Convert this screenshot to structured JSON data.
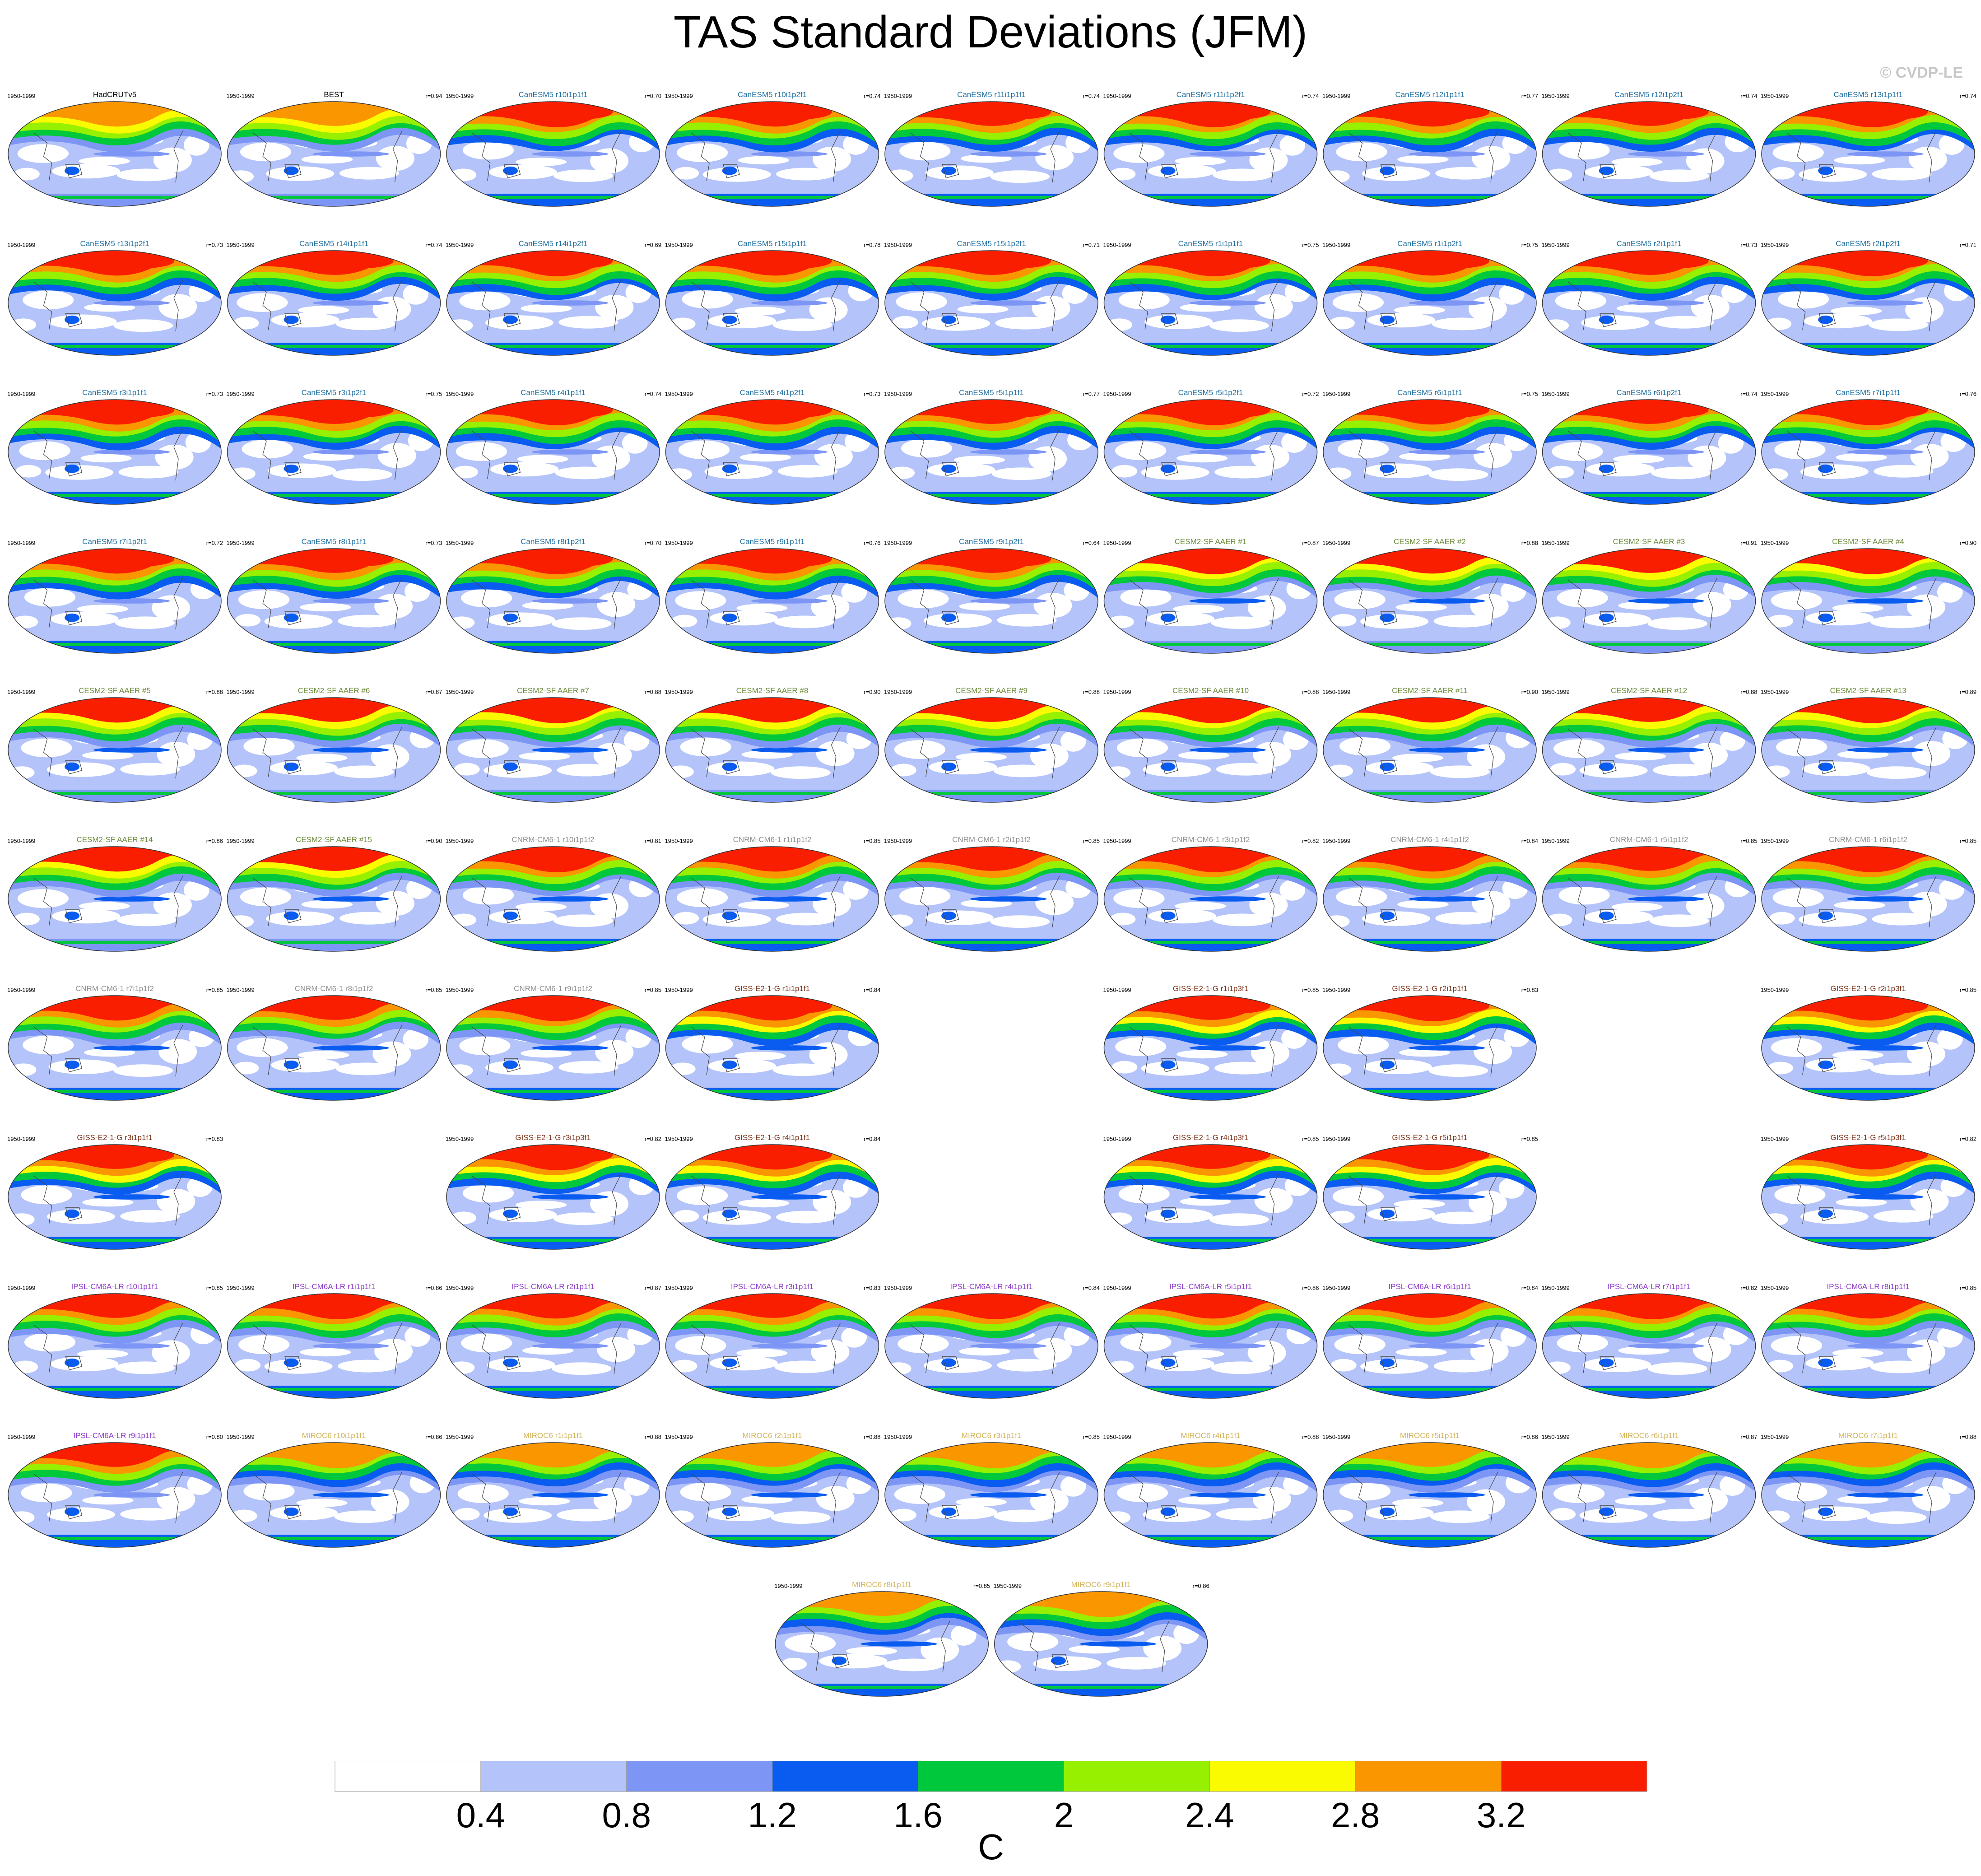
{
  "figure": {
    "title": "TAS Standard Deviations (JFM)",
    "watermark": "© CVDP-LE",
    "colorbar_unit": "C"
  },
  "chart_data": {
    "type": "heatmap",
    "description_kind": "grid of global map panels",
    "colorbar": {
      "levels": [
        0.4,
        0.8,
        1.2,
        1.6,
        2,
        2.4,
        2.8,
        3.2
      ],
      "tick_labels": [
        "0.4",
        "0.8",
        "1.2",
        "1.6",
        "2",
        "2.4",
        "2.8",
        "3.2"
      ],
      "colors": [
        "#ffffff",
        "#b4c4fa",
        "#7d96f5",
        "#0a5cf0",
        "#00c83c",
        "#96f000",
        "#fafa00",
        "#fa9600",
        "#fa1e00"
      ],
      "unit": "C"
    },
    "panels": [
      {
        "row": 0,
        "col": 0,
        "title": "HadCRUTv5",
        "period": "1950-1999",
        "r": "",
        "group": "obs",
        "style": "obs"
      },
      {
        "row": 0,
        "col": 1,
        "title": "BEST",
        "period": "1950-1999",
        "r": "r=0.94",
        "group": "obs",
        "style": "obs"
      },
      {
        "row": 0,
        "col": 2,
        "title": "CanESM5 r10i1p1f1",
        "period": "1950-1999",
        "r": "r=0.70",
        "group": "canesm",
        "style": "can"
      },
      {
        "row": 0,
        "col": 3,
        "title": "CanESM5 r10i1p2f1",
        "period": "1950-1999",
        "r": "r=0.74",
        "group": "canesm",
        "style": "can"
      },
      {
        "row": 0,
        "col": 4,
        "title": "CanESM5 r11i1p1f1",
        "period": "1950-1999",
        "r": "r=0.74",
        "group": "canesm",
        "style": "can"
      },
      {
        "row": 0,
        "col": 5,
        "title": "CanESM5 r11i1p2f1",
        "period": "1950-1999",
        "r": "r=0.74",
        "group": "canesm",
        "style": "can"
      },
      {
        "row": 0,
        "col": 6,
        "title": "CanESM5 r12i1p1f1",
        "period": "1950-1999",
        "r": "r=0.77",
        "group": "canesm",
        "style": "can"
      },
      {
        "row": 0,
        "col": 7,
        "title": "CanESM5 r12i1p2f1",
        "period": "1950-1999",
        "r": "r=0.74",
        "group": "canesm",
        "style": "can"
      },
      {
        "row": 0,
        "col": 8,
        "title": "CanESM5 r13i1p1f1",
        "period": "1950-1999",
        "r": "r=0.74",
        "group": "canesm",
        "style": "can"
      },
      {
        "row": 1,
        "col": 0,
        "title": "CanESM5 r13i1p2f1",
        "period": "1950-1999",
        "r": "r=0.73",
        "group": "canesm",
        "style": "can"
      },
      {
        "row": 1,
        "col": 1,
        "title": "CanESM5 r14i1p1f1",
        "period": "1950-1999",
        "r": "r=0.74",
        "group": "canesm",
        "style": "can"
      },
      {
        "row": 1,
        "col": 2,
        "title": "CanESM5 r14i1p2f1",
        "period": "1950-1999",
        "r": "r=0.69",
        "group": "canesm",
        "style": "can"
      },
      {
        "row": 1,
        "col": 3,
        "title": "CanESM5 r15i1p1f1",
        "period": "1950-1999",
        "r": "r=0.78",
        "group": "canesm",
        "style": "can"
      },
      {
        "row": 1,
        "col": 4,
        "title": "CanESM5 r15i1p2f1",
        "period": "1950-1999",
        "r": "r=0.71",
        "group": "canesm",
        "style": "can"
      },
      {
        "row": 1,
        "col": 5,
        "title": "CanESM5 r1i1p1f1",
        "period": "1950-1999",
        "r": "r=0.75",
        "group": "canesm",
        "style": "can"
      },
      {
        "row": 1,
        "col": 6,
        "title": "CanESM5 r1i1p2f1",
        "period": "1950-1999",
        "r": "r=0.75",
        "group": "canesm",
        "style": "can"
      },
      {
        "row": 1,
        "col": 7,
        "title": "CanESM5 r2i1p1f1",
        "period": "1950-1999",
        "r": "r=0.73",
        "group": "canesm",
        "style": "can"
      },
      {
        "row": 1,
        "col": 8,
        "title": "CanESM5 r2i1p2f1",
        "period": "1950-1999",
        "r": "r=0.71",
        "group": "canesm",
        "style": "can"
      },
      {
        "row": 2,
        "col": 0,
        "title": "CanESM5 r3i1p1f1",
        "period": "1950-1999",
        "r": "r=0.73",
        "group": "canesm",
        "style": "can"
      },
      {
        "row": 2,
        "col": 1,
        "title": "CanESM5 r3i1p2f1",
        "period": "1950-1999",
        "r": "r=0.75",
        "group": "canesm",
        "style": "can"
      },
      {
        "row": 2,
        "col": 2,
        "title": "CanESM5 r4i1p1f1",
        "period": "1950-1999",
        "r": "r=0.74",
        "group": "canesm",
        "style": "can"
      },
      {
        "row": 2,
        "col": 3,
        "title": "CanESM5 r4i1p2f1",
        "period": "1950-1999",
        "r": "r=0.73",
        "group": "canesm",
        "style": "can"
      },
      {
        "row": 2,
        "col": 4,
        "title": "CanESM5 r5i1p1f1",
        "period": "1950-1999",
        "r": "r=0.77",
        "group": "canesm",
        "style": "can"
      },
      {
        "row": 2,
        "col": 5,
        "title": "CanESM5 r5i1p2f1",
        "period": "1950-1999",
        "r": "r=0.72",
        "group": "canesm",
        "style": "can"
      },
      {
        "row": 2,
        "col": 6,
        "title": "CanESM5 r6i1p1f1",
        "period": "1950-1999",
        "r": "r=0.75",
        "group": "canesm",
        "style": "can"
      },
      {
        "row": 2,
        "col": 7,
        "title": "CanESM5 r6i1p2f1",
        "period": "1950-1999",
        "r": "r=0.74",
        "group": "canesm",
        "style": "can"
      },
      {
        "row": 2,
        "col": 8,
        "title": "CanESM5 r7i1p1f1",
        "period": "1950-1999",
        "r": "r=0.76",
        "group": "canesm",
        "style": "can"
      },
      {
        "row": 3,
        "col": 0,
        "title": "CanESM5 r7i1p2f1",
        "period": "1950-1999",
        "r": "r=0.72",
        "group": "canesm",
        "style": "can"
      },
      {
        "row": 3,
        "col": 1,
        "title": "CanESM5 r8i1p1f1",
        "period": "1950-1999",
        "r": "r=0.73",
        "group": "canesm",
        "style": "can"
      },
      {
        "row": 3,
        "col": 2,
        "title": "CanESM5 r8i1p2f1",
        "period": "1950-1999",
        "r": "r=0.70",
        "group": "canesm",
        "style": "can"
      },
      {
        "row": 3,
        "col": 3,
        "title": "CanESM5 r9i1p1f1",
        "period": "1950-1999",
        "r": "r=0.76",
        "group": "canesm",
        "style": "can"
      },
      {
        "row": 3,
        "col": 4,
        "title": "CanESM5 r9i1p2f1",
        "period": "1950-1999",
        "r": "r=0.64",
        "group": "canesm",
        "style": "can"
      },
      {
        "row": 3,
        "col": 5,
        "title": "CESM2-SF AAER #1",
        "period": "1950-1999",
        "r": "r=0.87",
        "group": "cesm",
        "style": "cesm"
      },
      {
        "row": 3,
        "col": 6,
        "title": "CESM2-SF AAER #2",
        "period": "1950-1999",
        "r": "r=0.88",
        "group": "cesm",
        "style": "cesm"
      },
      {
        "row": 3,
        "col": 7,
        "title": "CESM2-SF AAER #3",
        "period": "1950-1999",
        "r": "r=0.91",
        "group": "cesm",
        "style": "cesm"
      },
      {
        "row": 3,
        "col": 8,
        "title": "CESM2-SF AAER #4",
        "period": "1950-1999",
        "r": "r=0.90",
        "group": "cesm",
        "style": "cesm"
      },
      {
        "row": 4,
        "col": 0,
        "title": "CESM2-SF AAER #5",
        "period": "1950-1999",
        "r": "r=0.88",
        "group": "cesm",
        "style": "cesm"
      },
      {
        "row": 4,
        "col": 1,
        "title": "CESM2-SF AAER #6",
        "period": "1950-1999",
        "r": "r=0.87",
        "group": "cesm",
        "style": "cesm"
      },
      {
        "row": 4,
        "col": 2,
        "title": "CESM2-SF AAER #7",
        "period": "1950-1999",
        "r": "r=0.88",
        "group": "cesm",
        "style": "cesm"
      },
      {
        "row": 4,
        "col": 3,
        "title": "CESM2-SF AAER #8",
        "period": "1950-1999",
        "r": "r=0.90",
        "group": "cesm",
        "style": "cesm"
      },
      {
        "row": 4,
        "col": 4,
        "title": "CESM2-SF AAER #9",
        "period": "1950-1999",
        "r": "r=0.88",
        "group": "cesm",
        "style": "cesm"
      },
      {
        "row": 4,
        "col": 5,
        "title": "CESM2-SF AAER #10",
        "period": "1950-1999",
        "r": "r=0.88",
        "group": "cesm",
        "style": "cesm"
      },
      {
        "row": 4,
        "col": 6,
        "title": "CESM2-SF AAER #11",
        "period": "1950-1999",
        "r": "r=0.90",
        "group": "cesm",
        "style": "cesm"
      },
      {
        "row": 4,
        "col": 7,
        "title": "CESM2-SF AAER #12",
        "period": "1950-1999",
        "r": "r=0.88",
        "group": "cesm",
        "style": "cesm"
      },
      {
        "row": 4,
        "col": 8,
        "title": "CESM2-SF AAER #13",
        "period": "1950-1999",
        "r": "r=0.89",
        "group": "cesm",
        "style": "cesm"
      },
      {
        "row": 5,
        "col": 0,
        "title": "CESM2-SF AAER #14",
        "period": "1950-1999",
        "r": "r=0.86",
        "group": "cesm",
        "style": "cesm"
      },
      {
        "row": 5,
        "col": 1,
        "title": "CESM2-SF AAER #15",
        "period": "1950-1999",
        "r": "r=0.90",
        "group": "cesm",
        "style": "cesm"
      },
      {
        "row": 5,
        "col": 2,
        "title": "CNRM-CM6-1 r10i1p1f2",
        "period": "1950-1999",
        "r": "r=0.81",
        "group": "cnrm",
        "style": "cnrm"
      },
      {
        "row": 5,
        "col": 3,
        "title": "CNRM-CM6-1 r1i1p1f2",
        "period": "1950-1999",
        "r": "r=0.85",
        "group": "cnrm",
        "style": "cnrm"
      },
      {
        "row": 5,
        "col": 4,
        "title": "CNRM-CM6-1 r2i1p1f2",
        "period": "1950-1999",
        "r": "r=0.85",
        "group": "cnrm",
        "style": "cnrm"
      },
      {
        "row": 5,
        "col": 5,
        "title": "CNRM-CM6-1 r3i1p1f2",
        "period": "1950-1999",
        "r": "r=0.82",
        "group": "cnrm",
        "style": "cnrm"
      },
      {
        "row": 5,
        "col": 6,
        "title": "CNRM-CM6-1 r4i1p1f2",
        "period": "1950-1999",
        "r": "r=0.84",
        "group": "cnrm",
        "style": "cnrm"
      },
      {
        "row": 5,
        "col": 7,
        "title": "CNRM-CM6-1 r5i1p1f2",
        "period": "1950-1999",
        "r": "r=0.85",
        "group": "cnrm",
        "style": "cnrm"
      },
      {
        "row": 5,
        "col": 8,
        "title": "CNRM-CM6-1 r6i1p1f2",
        "period": "1950-1999",
        "r": "r=0.85",
        "group": "cnrm",
        "style": "cnrm"
      },
      {
        "row": 6,
        "col": 0,
        "title": "CNRM-CM6-1 r7i1p1f2",
        "period": "1950-1999",
        "r": "r=0.85",
        "group": "cnrm",
        "style": "cnrm"
      },
      {
        "row": 6,
        "col": 1,
        "title": "CNRM-CM6-1 r8i1p1f2",
        "period": "1950-1999",
        "r": "r=0.85",
        "group": "cnrm",
        "style": "cnrm"
      },
      {
        "row": 6,
        "col": 2,
        "title": "CNRM-CM6-1 r9i1p1f2",
        "period": "1950-1999",
        "r": "r=0.85",
        "group": "cnrm",
        "style": "cnrm"
      },
      {
        "row": 6,
        "col": 3,
        "title": "GISS-E2-1-G r1i1p1f1",
        "period": "1950-1999",
        "r": "r=0.84",
        "group": "giss",
        "style": "giss"
      },
      {
        "row": 6,
        "col": 5,
        "title": "GISS-E2-1-G r1i1p3f1",
        "period": "1950-1999",
        "r": "r=0.85",
        "group": "giss",
        "style": "giss"
      },
      {
        "row": 6,
        "col": 6,
        "title": "GISS-E2-1-G r2i1p1f1",
        "period": "1950-1999",
        "r": "r=0.83",
        "group": "giss",
        "style": "giss"
      },
      {
        "row": 6,
        "col": 8,
        "title": "GISS-E2-1-G r2i1p3f1",
        "period": "1950-1999",
        "r": "r=0.85",
        "group": "giss",
        "style": "giss"
      },
      {
        "row": 7,
        "col": 0,
        "title": "GISS-E2-1-G r3i1p1f1",
        "period": "1950-1999",
        "r": "r=0.83",
        "group": "giss",
        "style": "giss"
      },
      {
        "row": 7,
        "col": 2,
        "title": "GISS-E2-1-G r3i1p3f1",
        "period": "1950-1999",
        "r": "r=0.82",
        "group": "giss",
        "style": "giss"
      },
      {
        "row": 7,
        "col": 3,
        "title": "GISS-E2-1-G r4i1p1f1",
        "period": "1950-1999",
        "r": "r=0.84",
        "group": "giss",
        "style": "giss"
      },
      {
        "row": 7,
        "col": 5,
        "title": "GISS-E2-1-G r4i1p3f1",
        "period": "1950-1999",
        "r": "r=0.85",
        "group": "giss",
        "style": "giss"
      },
      {
        "row": 7,
        "col": 6,
        "title": "GISS-E2-1-G r5i1p1f1",
        "period": "1950-1999",
        "r": "r=0.85",
        "group": "giss",
        "style": "giss"
      },
      {
        "row": 7,
        "col": 8,
        "title": "GISS-E2-1-G r5i1p3f1",
        "period": "1950-1999",
        "r": "r=0.82",
        "group": "giss",
        "style": "giss"
      },
      {
        "row": 8,
        "col": 0,
        "title": "IPSL-CM6A-LR r10i1p1f1",
        "period": "1950-1999",
        "r": "r=0.85",
        "group": "ipsl",
        "style": "ipsl"
      },
      {
        "row": 8,
        "col": 1,
        "title": "IPSL-CM6A-LR r1i1p1f1",
        "period": "1950-1999",
        "r": "r=0.86",
        "group": "ipsl",
        "style": "ipsl"
      },
      {
        "row": 8,
        "col": 2,
        "title": "IPSL-CM6A-LR r2i1p1f1",
        "period": "1950-1999",
        "r": "r=0.87",
        "group": "ipsl",
        "style": "ipsl"
      },
      {
        "row": 8,
        "col": 3,
        "title": "IPSL-CM6A-LR r3i1p1f1",
        "period": "1950-1999",
        "r": "r=0.83",
        "group": "ipsl",
        "style": "ipsl"
      },
      {
        "row": 8,
        "col": 4,
        "title": "IPSL-CM6A-LR r4i1p1f1",
        "period": "1950-1999",
        "r": "r=0.84",
        "group": "ipsl",
        "style": "ipsl"
      },
      {
        "row": 8,
        "col": 5,
        "title": "IPSL-CM6A-LR r5i1p1f1",
        "period": "1950-1999",
        "r": "r=0.86",
        "group": "ipsl",
        "style": "ipsl"
      },
      {
        "row": 8,
        "col": 6,
        "title": "IPSL-CM6A-LR r6i1p1f1",
        "period": "1950-1999",
        "r": "r=0.84",
        "group": "ipsl",
        "style": "ipsl"
      },
      {
        "row": 8,
        "col": 7,
        "title": "IPSL-CM6A-LR r7i1p1f1",
        "period": "1950-1999",
        "r": "r=0.82",
        "group": "ipsl",
        "style": "ipsl"
      },
      {
        "row": 8,
        "col": 8,
        "title": "IPSL-CM6A-LR r8i1p1f1",
        "period": "1950-1999",
        "r": "r=0.85",
        "group": "ipsl",
        "style": "ipsl"
      },
      {
        "row": 9,
        "col": 0,
        "title": "IPSL-CM6A-LR r9i1p1f1",
        "period": "1950-1999",
        "r": "r=0.80",
        "group": "ipsl",
        "style": "ipsl"
      },
      {
        "row": 9,
        "col": 1,
        "title": "MIROC6 r10i1p1f1",
        "period": "1950-1999",
        "r": "r=0.86",
        "group": "miroc",
        "style": "miroc"
      },
      {
        "row": 9,
        "col": 2,
        "title": "MIROC6 r1i1p1f1",
        "period": "1950-1999",
        "r": "r=0.88",
        "group": "miroc",
        "style": "miroc"
      },
      {
        "row": 9,
        "col": 3,
        "title": "MIROC6 r2i1p1f1",
        "period": "1950-1999",
        "r": "r=0.88",
        "group": "miroc",
        "style": "miroc"
      },
      {
        "row": 9,
        "col": 4,
        "title": "MIROC6 r3i1p1f1",
        "period": "1950-1999",
        "r": "r=0.85",
        "group": "miroc",
        "style": "miroc"
      },
      {
        "row": 9,
        "col": 5,
        "title": "MIROC6 r4i1p1f1",
        "period": "1950-1999",
        "r": "r=0.88",
        "group": "miroc",
        "style": "miroc"
      },
      {
        "row": 9,
        "col": 6,
        "title": "MIROC6 r5i1p1f1",
        "period": "1950-1999",
        "r": "r=0.86",
        "group": "miroc",
        "style": "miroc"
      },
      {
        "row": 9,
        "col": 7,
        "title": "MIROC6 r6i1p1f1",
        "period": "1950-1999",
        "r": "r=0.87",
        "group": "miroc",
        "style": "miroc"
      },
      {
        "row": 9,
        "col": 8,
        "title": "MIROC6 r7i1p1f1",
        "period": "1950-1999",
        "r": "r=0.88",
        "group": "miroc",
        "style": "miroc"
      },
      {
        "row": 10,
        "col": 3.5,
        "title": "MIROC6 r8i1p1f1",
        "period": "1950-1999",
        "r": "r=0.85",
        "group": "miroc",
        "style": "miroc"
      },
      {
        "row": 10,
        "col": 4.5,
        "title": "MIROC6 r9i1p1f1",
        "period": "1950-1999",
        "r": "r=0.86",
        "group": "miroc",
        "style": "miroc"
      }
    ],
    "title_colors": {
      "obs": "#000000",
      "canesm": "#1e6ea0",
      "cesm": "#6e8c3c",
      "cnrm": "#909090",
      "giss": "#7a3218",
      "ipsl": "#8c3cc8",
      "miroc": "#d2b45a"
    }
  }
}
